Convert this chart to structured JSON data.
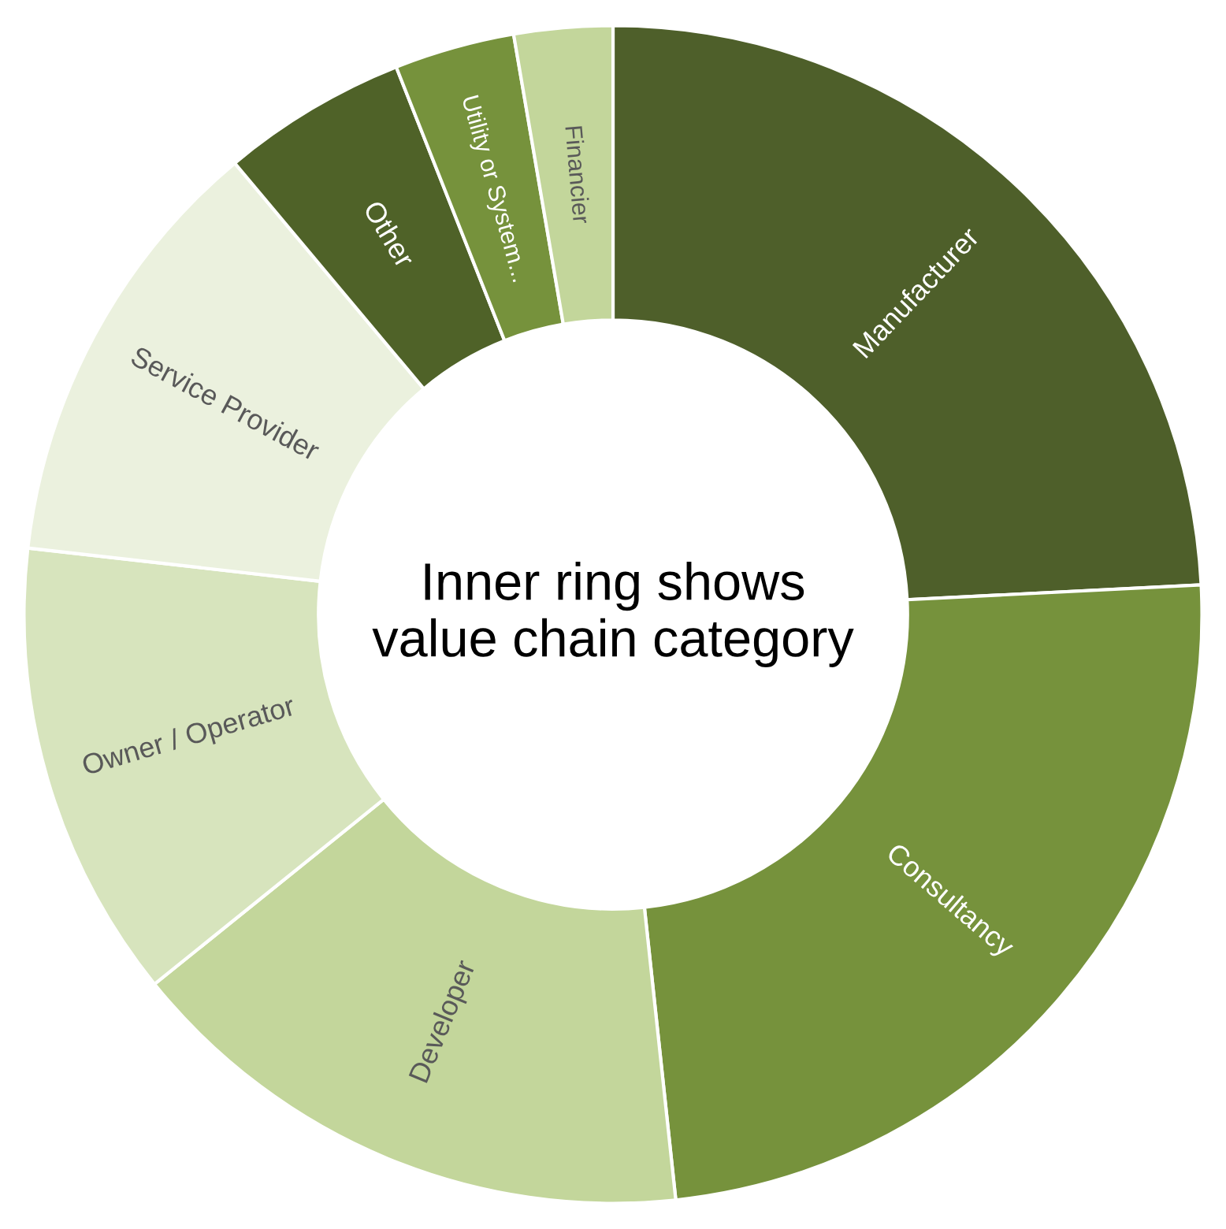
{
  "chart_data": {
    "type": "donut",
    "categories": [
      "Manufacturer",
      "Consultancy",
      "Developer",
      "Owner / Operator",
      "Service Provider",
      "Other",
      "Utility or System...",
      "Financier"
    ],
    "values": [
      24.2,
      24.1,
      15.9,
      12.6,
      12.1,
      5.1,
      3.3,
      2.7
    ],
    "colors": [
      "#4e5f2a",
      "#76923c",
      "#c3d69b",
      "#d7e4bd",
      "#ebf1de",
      "#4f6228",
      "#76923c",
      "#c3d69b"
    ],
    "annotations": [
      "Inner ring shows value chain category"
    ],
    "legend": false
  }
}
